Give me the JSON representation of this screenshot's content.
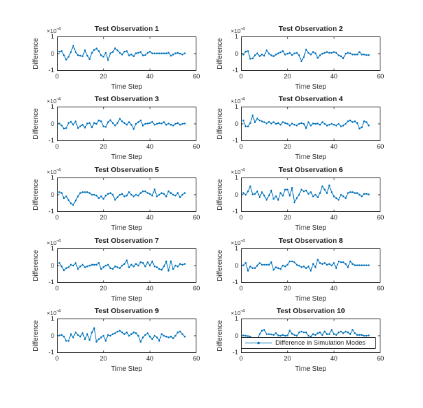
{
  "figure": {
    "background": "#ffffff",
    "colors": {
      "line": "#0072BD",
      "axis": "#262626",
      "text": "#262626",
      "legend_border": "#262626",
      "legend_bg": "#ffffff"
    },
    "axes": {
      "xlabel": "Time Step",
      "ylabel": "Difference",
      "x_ticks": [
        "0",
        "20",
        "40",
        "60"
      ],
      "y_ticks": [
        "1",
        "0",
        "-1"
      ],
      "x_range": [
        0,
        60
      ],
      "y_range": [
        -1,
        1
      ],
      "exponent_base": "×10",
      "exponent_power": "-4",
      "y_unit": "1e-4",
      "grid": false
    },
    "legend": {
      "label": "Difference in Simulation Modes",
      "attached_to": "Test Observation 10",
      "position": "inside lower area of subplot 10"
    }
  },
  "chart_data": [
    {
      "type": "line",
      "title": "Test Observation 1",
      "xlabel": "Time Step",
      "ylabel": "Difference",
      "xlim": [
        0,
        60
      ],
      "ylim_e4": [
        -1,
        1
      ],
      "x_start": 1,
      "x_step": 1,
      "values": [
        0.12,
        0.15,
        -0.1,
        -0.35,
        -0.18,
        0.1,
        0.47,
        0.1,
        -0.08,
        -0.12,
        -0.15,
        0.2,
        -0.12,
        -0.32,
        0.05,
        0.22,
        0.3,
        0.15,
        -0.1,
        -0.18,
        0.05,
        -0.38,
        0.02,
        0.1,
        0.32,
        0.2,
        0.05,
        -0.05,
        0.12,
        0.15,
        -0.1,
        -0.05,
        -0.15,
        0.02,
        0.05,
        0.1,
        -0.1,
        -0.08,
        0.05,
        0.12,
        0.02,
        0.02,
        0.02,
        0.02,
        0.02,
        0.02,
        0.02,
        0.05,
        -0.12,
        -0.05,
        0.02,
        0.05,
        0.0,
        -0.05,
        0.02
      ]
    },
    {
      "type": "line",
      "title": "Test Observation 2",
      "xlabel": "Time Step",
      "ylabel": "Difference",
      "xlim": [
        0,
        60
      ],
      "ylim_e4": [
        -1,
        1
      ],
      "x_start": 1,
      "x_step": 1,
      "values": [
        -0.05,
        0.12,
        0.15,
        -0.3,
        -0.28,
        -0.1,
        0.02,
        -0.15,
        -0.05,
        -0.12,
        0.2,
        0.0,
        -0.1,
        -0.15,
        -0.05,
        0.02,
        0.08,
        0.15,
        -0.05,
        0.0,
        0.05,
        -0.08,
        0.02,
        0.05,
        -0.1,
        -0.45,
        -0.2,
        0.25,
        0.05,
        -0.05,
        0.1,
        0.02,
        -0.25,
        -0.1,
        0.0,
        0.05,
        0.1,
        0.05,
        0.05,
        0.1,
        0.05,
        -0.1,
        -0.15,
        -0.28,
        0.0,
        0.05,
        0.02,
        -0.05,
        -0.05,
        -0.05,
        0.1,
        -0.05,
        -0.05,
        -0.08,
        -0.08
      ]
    },
    {
      "type": "line",
      "title": "Test Observation 3",
      "xlabel": "Time Step",
      "ylabel": "Difference",
      "xlim": [
        0,
        60
      ],
      "ylim_e4": [
        -1,
        1
      ],
      "x_start": 1,
      "x_step": 1,
      "values": [
        0.02,
        -0.1,
        -0.28,
        -0.25,
        0.05,
        0.12,
        -0.05,
        0.15,
        -0.25,
        -0.15,
        -0.05,
        -0.22,
        0.02,
        0.05,
        -0.2,
        0.05,
        0.0,
        0.2,
        0.15,
        -0.15,
        -0.18,
        0.1,
        0.22,
        0.05,
        -0.1,
        0.05,
        0.3,
        0.15,
        0.05,
        -0.05,
        0.1,
        -0.05,
        -0.3,
        0.0,
        0.1,
        0.2,
        -0.1,
        0.0,
        0.02,
        0.05,
        0.12,
        -0.05,
        0.0,
        0.05,
        0.02,
        0.1,
        -0.05,
        0.02,
        -0.05,
        -0.1,
        0.0,
        0.05,
        -0.05,
        0.0,
        0.02
      ]
    },
    {
      "type": "line",
      "title": "Test Observation 4",
      "xlabel": "Time Step",
      "ylabel": "Difference",
      "xlim": [
        0,
        60
      ],
      "ylim_e4": [
        -1,
        1
      ],
      "x_start": 1,
      "x_step": 1,
      "values": [
        0.2,
        -0.15,
        -0.15,
        0.05,
        0.5,
        0.1,
        0.32,
        0.2,
        0.15,
        0.1,
        0.02,
        0.12,
        0.02,
        0.1,
        0.0,
        0.05,
        -0.05,
        0.1,
        0.05,
        0.0,
        -0.1,
        0.02,
        -0.05,
        -0.1,
        0.0,
        0.05,
        0.0,
        -0.25,
        0.1,
        -0.1,
        0.02,
        0.0,
        0.02,
        -0.05,
        0.1,
        0.0,
        -0.1,
        -0.05,
        0.0,
        -0.05,
        -0.1,
        0.0,
        -0.15,
        -0.1,
        0.0,
        0.15,
        0.2,
        0.1,
        0.15,
        0.05,
        -0.28,
        -0.2,
        0.15,
        0.1,
        -0.1
      ]
    },
    {
      "type": "line",
      "title": "Test Observation 5",
      "xlabel": "Time Step",
      "ylabel": "Difference",
      "xlim": [
        0,
        60
      ],
      "ylim_e4": [
        -1,
        1
      ],
      "x_start": 1,
      "x_step": 1,
      "values": [
        0.15,
        0.1,
        -0.2,
        -0.1,
        -0.32,
        -0.52,
        -0.6,
        -0.35,
        -0.1,
        0.1,
        0.15,
        0.15,
        0.15,
        0.1,
        0.0,
        0.0,
        -0.05,
        -0.2,
        -0.1,
        -0.25,
        -0.05,
        0.05,
        0.1,
        0.0,
        -0.3,
        -0.15,
        0.0,
        0.05,
        -0.1,
        -0.05,
        0.15,
        0.0,
        -0.1,
        0.0,
        -0.05,
        0.1,
        0.2,
        0.2,
        0.1,
        0.05,
        -0.05,
        0.32,
        -0.1,
        0.0,
        0.1,
        0.05,
        -0.1,
        0.2,
        0.1,
        0.0,
        -0.05,
        0.1,
        -0.15,
        0.0,
        0.1
      ]
    },
    {
      "type": "line",
      "title": "Test Observation 6",
      "xlabel": "Time Step",
      "ylabel": "Difference",
      "xlim": [
        0,
        60
      ],
      "ylim_e4": [
        -1,
        1
      ],
      "x_start": 1,
      "x_step": 1,
      "values": [
        0.1,
        0.0,
        0.2,
        0.5,
        0.02,
        0.05,
        0.2,
        -0.15,
        0.15,
        -0.05,
        -0.3,
        -0.05,
        0.25,
        -0.25,
        -0.1,
        -0.3,
        0.1,
        -0.05,
        0.3,
        0.3,
        -0.05,
        0.4,
        -0.45,
        -0.2,
        0.0,
        0.3,
        0.2,
        0.25,
        0.05,
        0.15,
        -0.1,
        0.0,
        -0.15,
        0.1,
        0.5,
        0.3,
        0.1,
        0.55,
        0.15,
        -0.1,
        -0.2,
        -0.3,
        0.0,
        -0.1,
        -0.2,
        0.1,
        0.15,
        0.15,
        0.1,
        0.1,
        0.0,
        -0.1,
        0.05,
        0.05,
        0.02
      ]
    },
    {
      "type": "line",
      "title": "Test Observation 7",
      "xlabel": "Time Step",
      "ylabel": "Difference",
      "xlim": [
        0,
        60
      ],
      "ylim_e4": [
        -1,
        1
      ],
      "x_start": 1,
      "x_step": 1,
      "values": [
        0.15,
        -0.05,
        -0.28,
        -0.15,
        -0.1,
        0.05,
        0.0,
        0.15,
        -0.2,
        -0.05,
        0.05,
        -0.1,
        -0.05,
        0.0,
        0.05,
        0.05,
        0.05,
        0.15,
        -0.2,
        -0.1,
        0.0,
        0.05,
        -0.15,
        -0.2,
        -0.05,
        -0.1,
        -0.15,
        0.0,
        0.1,
        0.3,
        -0.1,
        0.05,
        -0.05,
        0.1,
        0.0,
        0.2,
        0.15,
        -0.05,
        0.2,
        0.0,
        0.25,
        -0.05,
        -0.1,
        -0.2,
        -0.25,
        -0.05,
        0.25,
        -0.3,
        0.25,
        -0.2,
        0.0,
        -0.05,
        0.1,
        0.05,
        0.1
      ]
    },
    {
      "type": "line",
      "title": "Test Observation 8",
      "xlabel": "Time Step",
      "ylabel": "Difference",
      "xlim": [
        0,
        60
      ],
      "ylim_e4": [
        -1,
        1
      ],
      "x_start": 1,
      "x_step": 1,
      "values": [
        0.02,
        0.15,
        -0.3,
        -0.05,
        -0.15,
        -0.15,
        0.0,
        0.15,
        0.05,
        0.05,
        0.05,
        0.05,
        0.2,
        -0.25,
        -0.1,
        -0.15,
        -0.2,
        0.0,
        -0.05,
        0.05,
        0.25,
        0.25,
        0.2,
        0.05,
        0.0,
        -0.1,
        -0.05,
        -0.15,
        -0.05,
        -0.3,
        0.1,
        -0.1,
        0.35,
        0.15,
        0.1,
        0.15,
        0.05,
        0.1,
        0.0,
        0.15,
        -0.15,
        0.25,
        0.2,
        0.2,
        0.1,
        -0.1,
        0.25,
        0.1,
        0.02,
        0.02,
        0.02,
        0.02,
        0.02,
        0.02,
        0.02
      ]
    },
    {
      "type": "line",
      "title": "Test Observation 9",
      "xlabel": "Time Step",
      "ylabel": "Difference",
      "xlim": [
        0,
        60
      ],
      "ylim_e4": [
        -1,
        1
      ],
      "x_start": 1,
      "x_step": 1,
      "values": [
        0.02,
        0.05,
        -0.05,
        -0.3,
        -0.3,
        0.1,
        -0.1,
        0.2,
        0.05,
        -0.05,
        0.15,
        -0.2,
        0.1,
        -0.25,
        0.2,
        0.45,
        -0.35,
        -0.2,
        -0.1,
        0.0,
        -0.3,
        0.05,
        0.0,
        0.1,
        0.15,
        0.25,
        0.3,
        0.2,
        0.1,
        0.2,
        0.0,
        0.1,
        0.2,
        0.15,
        0.0,
        -0.35,
        -0.1,
        0.05,
        0.15,
        -0.05,
        -0.2,
        0.0,
        -0.1,
        -0.3,
        0.1,
        0.0,
        -0.05,
        -0.1,
        -0.05,
        -0.15,
        0.0,
        0.2,
        0.25,
        0.1,
        -0.05
      ]
    },
    {
      "type": "line",
      "title": "Test Observation 10",
      "xlabel": "Time Step",
      "ylabel": "Difference",
      "xlim": [
        0,
        60
      ],
      "ylim_e4": [
        -1,
        1
      ],
      "x_start": 1,
      "x_step": 1,
      "legend": "Difference in Simulation Modes",
      "values": [
        0.02,
        0.0,
        -0.02,
        -0.05,
        -0.3,
        -0.35,
        -0.2,
        0.1,
        0.3,
        0.35,
        0.1,
        0.1,
        0.08,
        0.05,
        0.15,
        0.02,
        0.0,
        0.05,
        0.0,
        0.02,
        0.3,
        0.12,
        0.05,
        0.0,
        0.2,
        0.25,
        0.2,
        0.2,
        0.0,
        -0.05,
        0.1,
        0.05,
        0.15,
        0.2,
        0.05,
        0.25,
        0.1,
        0.1,
        0.35,
        0.1,
        0.05,
        0.2,
        0.25,
        0.15,
        0.25,
        0.2,
        0.1,
        0.35,
        0.15,
        0.05,
        0.05,
        0.05,
        0.0,
        0.0,
        0.02
      ]
    }
  ]
}
